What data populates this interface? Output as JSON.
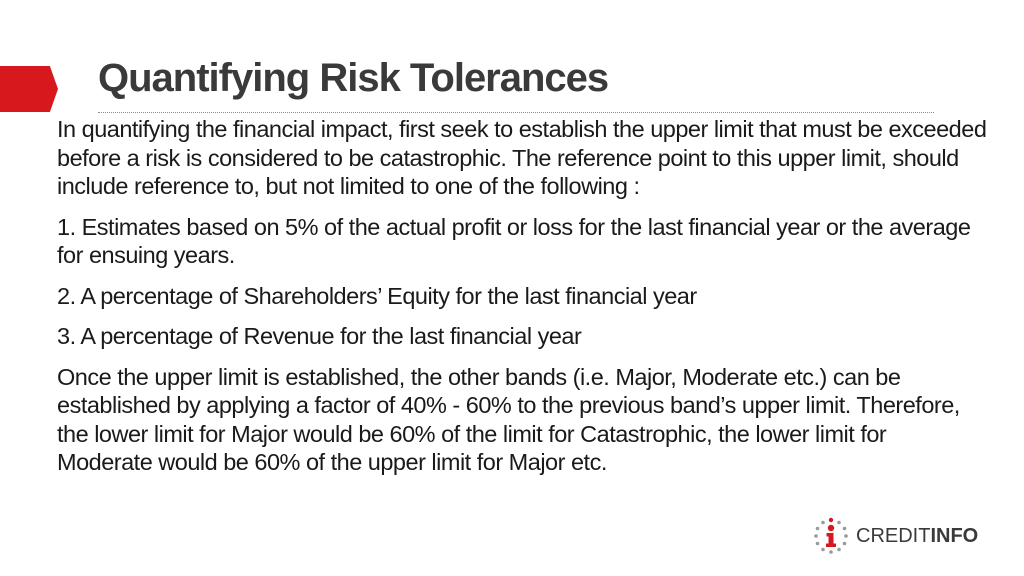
{
  "slide": {
    "title": "Quantifying Risk Tolerances",
    "paragraphs": [
      "In quantifying the financial impact, first seek to establish the upper limit that must be exceeded before a risk is considered to be catastrophic. The reference point to this upper limit, should include reference to, but not limited to one of the following :",
      "1. Estimates based on 5% of the actual profit or loss for the last financial year or the average for ensuing years.",
      "2. A percentage of Shareholders’ Equity for the last financial year",
      "3. A percentage of Revenue for the last financial year",
      "Once the upper limit is established, the other bands (i.e. Major, Moderate etc.) can be established by applying a factor of 40% - 60% to the previous band’s upper limit. Therefore, the lower limit for Major would be 60% of the limit for Catastrophic, the lower limit for Moderate would be 60% of the upper limit for Major etc."
    ]
  },
  "logo": {
    "icon": "creditinfo-logo-icon",
    "text_light": "CREDIT",
    "text_bold": "INFO"
  },
  "colors": {
    "accent": "#d7191e",
    "title": "#3a3a3a",
    "body_text": "#1a1a1a"
  }
}
